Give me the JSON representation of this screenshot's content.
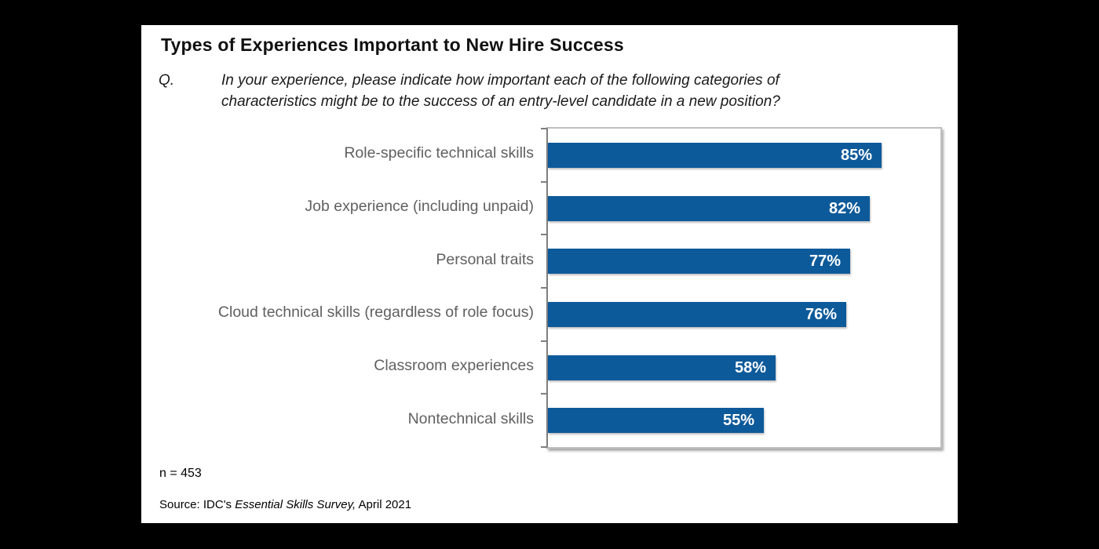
{
  "page": {
    "background_color": "#000000",
    "card_color": "#ffffff"
  },
  "header": {
    "title": "Types of Experiences Important to New Hire Success",
    "question_prefix": "Q.",
    "question_line1": "In your experience, please indicate how important each of the following categories of",
    "question_line2": "characteristics might be to the success of an entry-level candidate in a new position?"
  },
  "chart_data": {
    "type": "bar",
    "orientation": "horizontal",
    "title": "Types of Experiences Important to New Hire Success",
    "categories": [
      "Role-specific technical skills",
      "Job experience (including unpaid)",
      "Personal traits",
      "Cloud technical skills (regardless of role focus)",
      "Classroom experiences",
      "Nontechnical skills"
    ],
    "values": [
      85,
      82,
      77,
      76,
      58,
      55
    ],
    "value_labels": [
      "85%",
      "82%",
      "77%",
      "76%",
      "58%",
      "55%"
    ],
    "xlim": [
      0,
      100
    ],
    "grid": false,
    "legend": "none",
    "bar_color": "#0d5a9a",
    "category_label_color": "#606060",
    "value_label_color": "#ffffff",
    "axis_color": "#7f7f7f",
    "plot_border_color": "#bfbfbf"
  },
  "footer": {
    "sample_size": "n = 453",
    "source_prefix": "Source: IDC's ",
    "source_italic": "Essential Skills Survey,",
    "source_suffix": " April 2021"
  }
}
